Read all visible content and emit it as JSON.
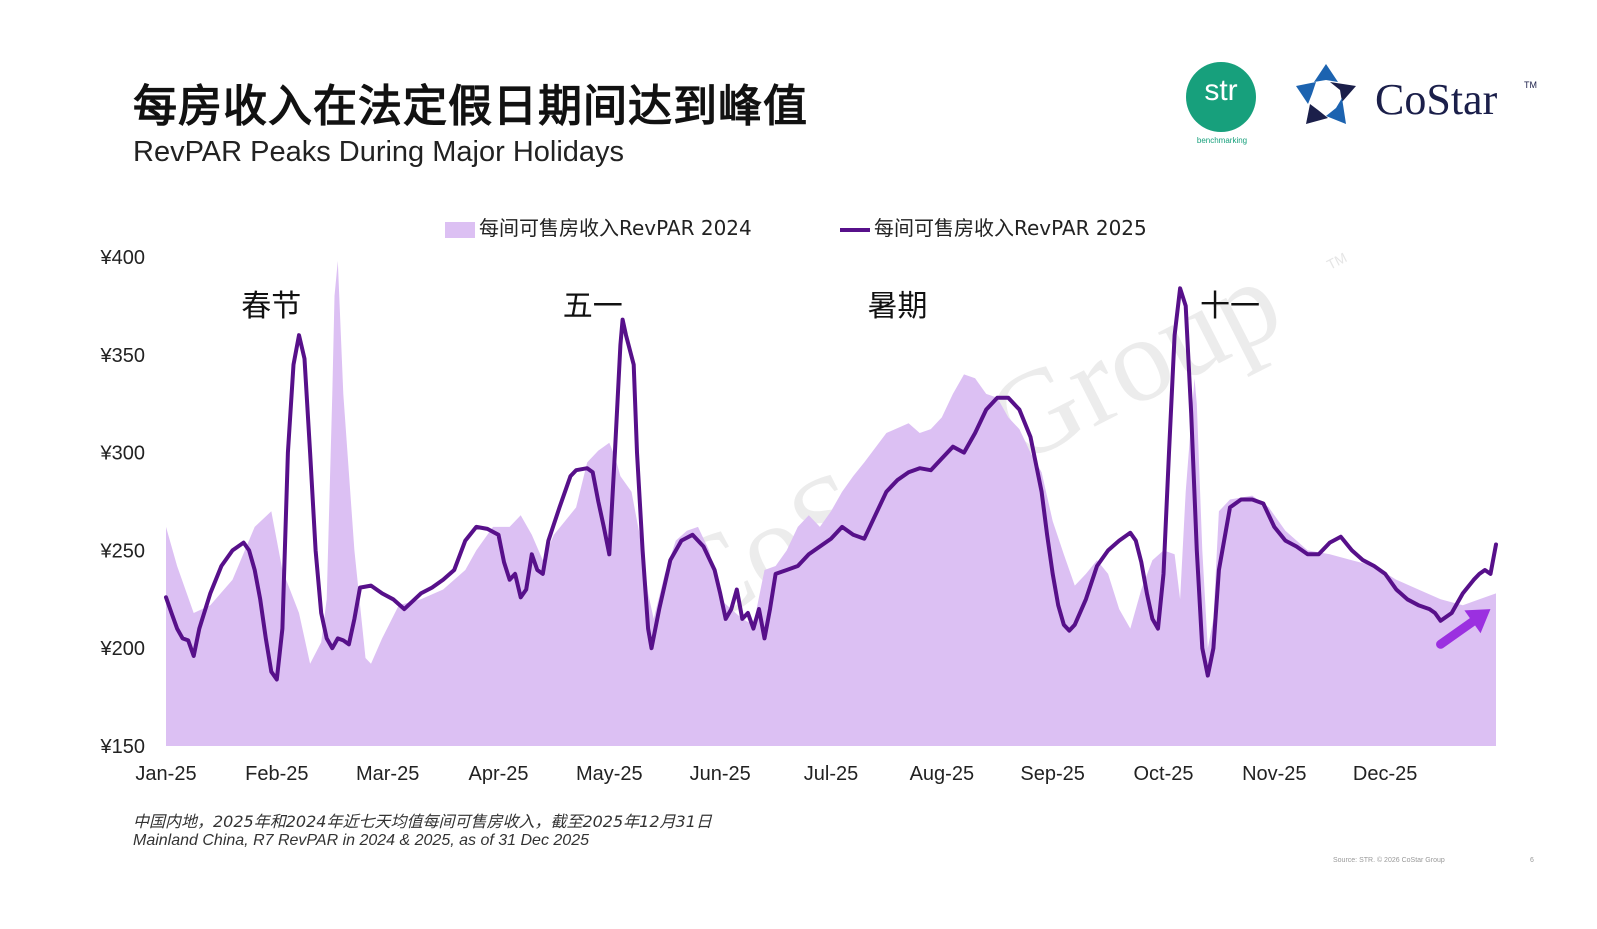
{
  "slide": {
    "title_zh": "每房收入在法定假日期间达到峰值",
    "title_en": "RevPAR Peaks During Major Holidays",
    "footnote_zh": "中国内地，2025年和2024年近七天均值每间可售房收入，截至2025年12月31日",
    "footnote_en": "Mainland China, R7 RevPAR in 2024 & 2025, as of 31 Dec 2025",
    "source": "Source: STR. © 2026 CoStar Group",
    "page_number": "6"
  },
  "logos": {
    "str_text": "str",
    "str_sub": "benchmarking",
    "costar_text": "CoStar",
    "costar_tm": "TM",
    "watermark": "CoStar Group",
    "watermark_tm": "TM"
  },
  "colors": {
    "area_2024": "#dcc0f3",
    "line_2025": "#57108a",
    "arrow": "#9b30e0",
    "str_green": "#17a07c",
    "costar_navy": "#1b1f4a",
    "costar_blue": "#1c63b0"
  },
  "chart_data": {
    "type": "line",
    "title": "",
    "xlabel": "",
    "ylabel": "",
    "ylim": [
      150,
      400
    ],
    "y_ticks": [
      150,
      200,
      250,
      300,
      350,
      400
    ],
    "y_tick_labels": [
      "¥150",
      "¥200",
      "¥250",
      "¥300",
      "¥350",
      "¥400"
    ],
    "x_range": [
      0,
      12
    ],
    "x_ticks": [
      0,
      1,
      2,
      3,
      4,
      5,
      6,
      7,
      8,
      9,
      10,
      11
    ],
    "x_tick_labels": [
      "Jan-25",
      "Feb-25",
      "Mar-25",
      "Apr-25",
      "May-25",
      "Jun-25",
      "Jul-25",
      "Aug-25",
      "Sep-25",
      "Oct-25",
      "Nov-25",
      "Dec-25"
    ],
    "legend": [
      "每间可售房收入RevPAR 2024",
      "每间可售房收入RevPAR 2025"
    ],
    "legend_position": "top",
    "grid": false,
    "annotations": [
      {
        "text": "春节",
        "x": 0.95,
        "y": 375
      },
      {
        "text": "五一",
        "x": 3.85,
        "y": 375
      },
      {
        "text": "暑期",
        "x": 6.6,
        "y": 375
      },
      {
        "text": "十一",
        "x": 9.6,
        "y": 375
      }
    ],
    "trend_arrow": {
      "from": [
        11.5,
        202
      ],
      "to": [
        11.95,
        220
      ]
    },
    "series": [
      {
        "name": "每间可售房收入RevPAR 2024",
        "style": "area",
        "points": [
          [
            0,
            262
          ],
          [
            0.1,
            242
          ],
          [
            0.25,
            218
          ],
          [
            0.4,
            222
          ],
          [
            0.6,
            235
          ],
          [
            0.8,
            262
          ],
          [
            0.95,
            270
          ],
          [
            1.05,
            240
          ],
          [
            1.2,
            218
          ],
          [
            1.3,
            192
          ],
          [
            1.4,
            203
          ],
          [
            1.45,
            225
          ],
          [
            1.5,
            330
          ],
          [
            1.52,
            380
          ],
          [
            1.55,
            398
          ],
          [
            1.6,
            330
          ],
          [
            1.7,
            250
          ],
          [
            1.8,
            195
          ],
          [
            1.85,
            192
          ],
          [
            1.95,
            205
          ],
          [
            2.1,
            222
          ],
          [
            2.3,
            225
          ],
          [
            2.5,
            230
          ],
          [
            2.7,
            240
          ],
          [
            2.8,
            250
          ],
          [
            2.95,
            262
          ],
          [
            3.1,
            262
          ],
          [
            3.2,
            268
          ],
          [
            3.3,
            258
          ],
          [
            3.4,
            245
          ],
          [
            3.5,
            258
          ],
          [
            3.6,
            265
          ],
          [
            3.7,
            272
          ],
          [
            3.8,
            295
          ],
          [
            3.9,
            301
          ],
          [
            4.0,
            305
          ],
          [
            4.05,
            298
          ],
          [
            4.1,
            288
          ],
          [
            4.2,
            280
          ],
          [
            4.3,
            250
          ],
          [
            4.35,
            228
          ],
          [
            4.4,
            215
          ],
          [
            4.5,
            238
          ],
          [
            4.6,
            255
          ],
          [
            4.7,
            260
          ],
          [
            4.8,
            262
          ],
          [
            4.9,
            250
          ],
          [
            5.0,
            225
          ],
          [
            5.1,
            220
          ],
          [
            5.2,
            215
          ],
          [
            5.3,
            212
          ],
          [
            5.4,
            240
          ],
          [
            5.5,
            242
          ],
          [
            5.6,
            250
          ],
          [
            5.7,
            262
          ],
          [
            5.8,
            268
          ],
          [
            5.9,
            262
          ],
          [
            6.0,
            270
          ],
          [
            6.1,
            280
          ],
          [
            6.2,
            288
          ],
          [
            6.3,
            295
          ],
          [
            6.5,
            310
          ],
          [
            6.7,
            315
          ],
          [
            6.8,
            310
          ],
          [
            6.9,
            312
          ],
          [
            7.0,
            318
          ],
          [
            7.1,
            330
          ],
          [
            7.2,
            340
          ],
          [
            7.3,
            338
          ],
          [
            7.4,
            330
          ],
          [
            7.5,
            328
          ],
          [
            7.6,
            318
          ],
          [
            7.7,
            312
          ],
          [
            7.8,
            300
          ],
          [
            7.9,
            290
          ],
          [
            8.0,
            265
          ],
          [
            8.1,
            248
          ],
          [
            8.2,
            232
          ],
          [
            8.3,
            238
          ],
          [
            8.4,
            245
          ],
          [
            8.5,
            238
          ],
          [
            8.6,
            220
          ],
          [
            8.7,
            210
          ],
          [
            8.8,
            230
          ],
          [
            8.9,
            245
          ],
          [
            9.0,
            250
          ],
          [
            9.1,
            248
          ],
          [
            9.15,
            225
          ],
          [
            9.2,
            280
          ],
          [
            9.28,
            338
          ],
          [
            9.3,
            325
          ],
          [
            9.35,
            250
          ],
          [
            9.4,
            200
          ],
          [
            9.45,
            215
          ],
          [
            9.5,
            270
          ],
          [
            9.6,
            276
          ],
          [
            9.8,
            278
          ],
          [
            9.95,
            272
          ],
          [
            10.1,
            260
          ],
          [
            10.3,
            250
          ],
          [
            10.5,
            248
          ],
          [
            10.7,
            245
          ],
          [
            10.9,
            242
          ],
          [
            11.1,
            235
          ],
          [
            11.3,
            230
          ],
          [
            11.5,
            225
          ],
          [
            11.7,
            222
          ],
          [
            11.85,
            225
          ],
          [
            12.0,
            228
          ]
        ]
      },
      {
        "name": "每间可售房收入RevPAR 2025",
        "style": "line",
        "points": [
          [
            0,
            226
          ],
          [
            0.05,
            218
          ],
          [
            0.1,
            210
          ],
          [
            0.15,
            205
          ],
          [
            0.2,
            204
          ],
          [
            0.25,
            196
          ],
          [
            0.3,
            210
          ],
          [
            0.4,
            228
          ],
          [
            0.5,
            242
          ],
          [
            0.6,
            250
          ],
          [
            0.7,
            254
          ],
          [
            0.75,
            250
          ],
          [
            0.8,
            240
          ],
          [
            0.85,
            225
          ],
          [
            0.9,
            205
          ],
          [
            0.95,
            188
          ],
          [
            1.0,
            184
          ],
          [
            1.05,
            210
          ],
          [
            1.1,
            300
          ],
          [
            1.15,
            345
          ],
          [
            1.2,
            360
          ],
          [
            1.25,
            348
          ],
          [
            1.3,
            300
          ],
          [
            1.35,
            250
          ],
          [
            1.4,
            218
          ],
          [
            1.45,
            205
          ],
          [
            1.5,
            200
          ],
          [
            1.55,
            205
          ],
          [
            1.6,
            204
          ],
          [
            1.65,
            202
          ],
          [
            1.7,
            215
          ],
          [
            1.75,
            231
          ],
          [
            1.85,
            232
          ],
          [
            1.95,
            228
          ],
          [
            2.05,
            225
          ],
          [
            2.15,
            220
          ],
          [
            2.3,
            228
          ],
          [
            2.4,
            231
          ],
          [
            2.5,
            235
          ],
          [
            2.6,
            240
          ],
          [
            2.7,
            255
          ],
          [
            2.8,
            262
          ],
          [
            2.9,
            261
          ],
          [
            3.0,
            258
          ],
          [
            3.05,
            244
          ],
          [
            3.1,
            235
          ],
          [
            3.15,
            238
          ],
          [
            3.2,
            226
          ],
          [
            3.25,
            230
          ],
          [
            3.3,
            248
          ],
          [
            3.35,
            240
          ],
          [
            3.4,
            238
          ],
          [
            3.45,
            255
          ],
          [
            3.55,
            272
          ],
          [
            3.65,
            288
          ],
          [
            3.7,
            291
          ],
          [
            3.8,
            292
          ],
          [
            3.85,
            290
          ],
          [
            3.9,
            275
          ],
          [
            3.95,
            262
          ],
          [
            4.0,
            248
          ],
          [
            4.05,
            300
          ],
          [
            4.1,
            355
          ],
          [
            4.12,
            368
          ],
          [
            4.15,
            360
          ],
          [
            4.22,
            345
          ],
          [
            4.25,
            300
          ],
          [
            4.3,
            250
          ],
          [
            4.35,
            210
          ],
          [
            4.38,
            200
          ],
          [
            4.45,
            220
          ],
          [
            4.55,
            245
          ],
          [
            4.65,
            255
          ],
          [
            4.75,
            258
          ],
          [
            4.85,
            252
          ],
          [
            4.95,
            240
          ],
          [
            5.0,
            228
          ],
          [
            5.05,
            215
          ],
          [
            5.1,
            220
          ],
          [
            5.15,
            230
          ],
          [
            5.2,
            215
          ],
          [
            5.25,
            218
          ],
          [
            5.3,
            210
          ],
          [
            5.35,
            220
          ],
          [
            5.4,
            205
          ],
          [
            5.45,
            220
          ],
          [
            5.5,
            238
          ],
          [
            5.6,
            240
          ],
          [
            5.7,
            242
          ],
          [
            5.8,
            248
          ],
          [
            5.9,
            252
          ],
          [
            6.0,
            256
          ],
          [
            6.1,
            262
          ],
          [
            6.2,
            258
          ],
          [
            6.3,
            256
          ],
          [
            6.4,
            268
          ],
          [
            6.5,
            280
          ],
          [
            6.6,
            286
          ],
          [
            6.7,
            290
          ],
          [
            6.8,
            292
          ],
          [
            6.9,
            291
          ],
          [
            7.0,
            297
          ],
          [
            7.1,
            303
          ],
          [
            7.2,
            300
          ],
          [
            7.3,
            310
          ],
          [
            7.4,
            322
          ],
          [
            7.5,
            328
          ],
          [
            7.6,
            328
          ],
          [
            7.7,
            322
          ],
          [
            7.8,
            308
          ],
          [
            7.9,
            280
          ],
          [
            7.95,
            258
          ],
          [
            8.0,
            238
          ],
          [
            8.05,
            222
          ],
          [
            8.1,
            212
          ],
          [
            8.15,
            209
          ],
          [
            8.2,
            212
          ],
          [
            8.3,
            225
          ],
          [
            8.4,
            242
          ],
          [
            8.5,
            250
          ],
          [
            8.6,
            255
          ],
          [
            8.7,
            259
          ],
          [
            8.75,
            255
          ],
          [
            8.8,
            244
          ],
          [
            8.85,
            228
          ],
          [
            8.9,
            215
          ],
          [
            8.95,
            210
          ],
          [
            9.0,
            238
          ],
          [
            9.05,
            300
          ],
          [
            9.1,
            360
          ],
          [
            9.15,
            384
          ],
          [
            9.2,
            375
          ],
          [
            9.25,
            320
          ],
          [
            9.3,
            250
          ],
          [
            9.35,
            200
          ],
          [
            9.4,
            186
          ],
          [
            9.45,
            200
          ],
          [
            9.5,
            240
          ],
          [
            9.6,
            272
          ],
          [
            9.7,
            276
          ],
          [
            9.8,
            276
          ],
          [
            9.9,
            274
          ],
          [
            10.0,
            262
          ],
          [
            10.1,
            255
          ],
          [
            10.2,
            252
          ],
          [
            10.3,
            248
          ],
          [
            10.4,
            248
          ],
          [
            10.5,
            254
          ],
          [
            10.6,
            257
          ],
          [
            10.7,
            250
          ],
          [
            10.8,
            245
          ],
          [
            10.9,
            242
          ],
          [
            11.0,
            238
          ],
          [
            11.1,
            230
          ],
          [
            11.2,
            225
          ],
          [
            11.3,
            222
          ],
          [
            11.4,
            220
          ],
          [
            11.45,
            218
          ],
          [
            11.5,
            214
          ],
          [
            11.6,
            218
          ],
          [
            11.7,
            228
          ],
          [
            11.8,
            235
          ],
          [
            11.85,
            238
          ],
          [
            11.9,
            240
          ],
          [
            11.95,
            238
          ],
          [
            12.0,
            253
          ]
        ]
      }
    ]
  }
}
